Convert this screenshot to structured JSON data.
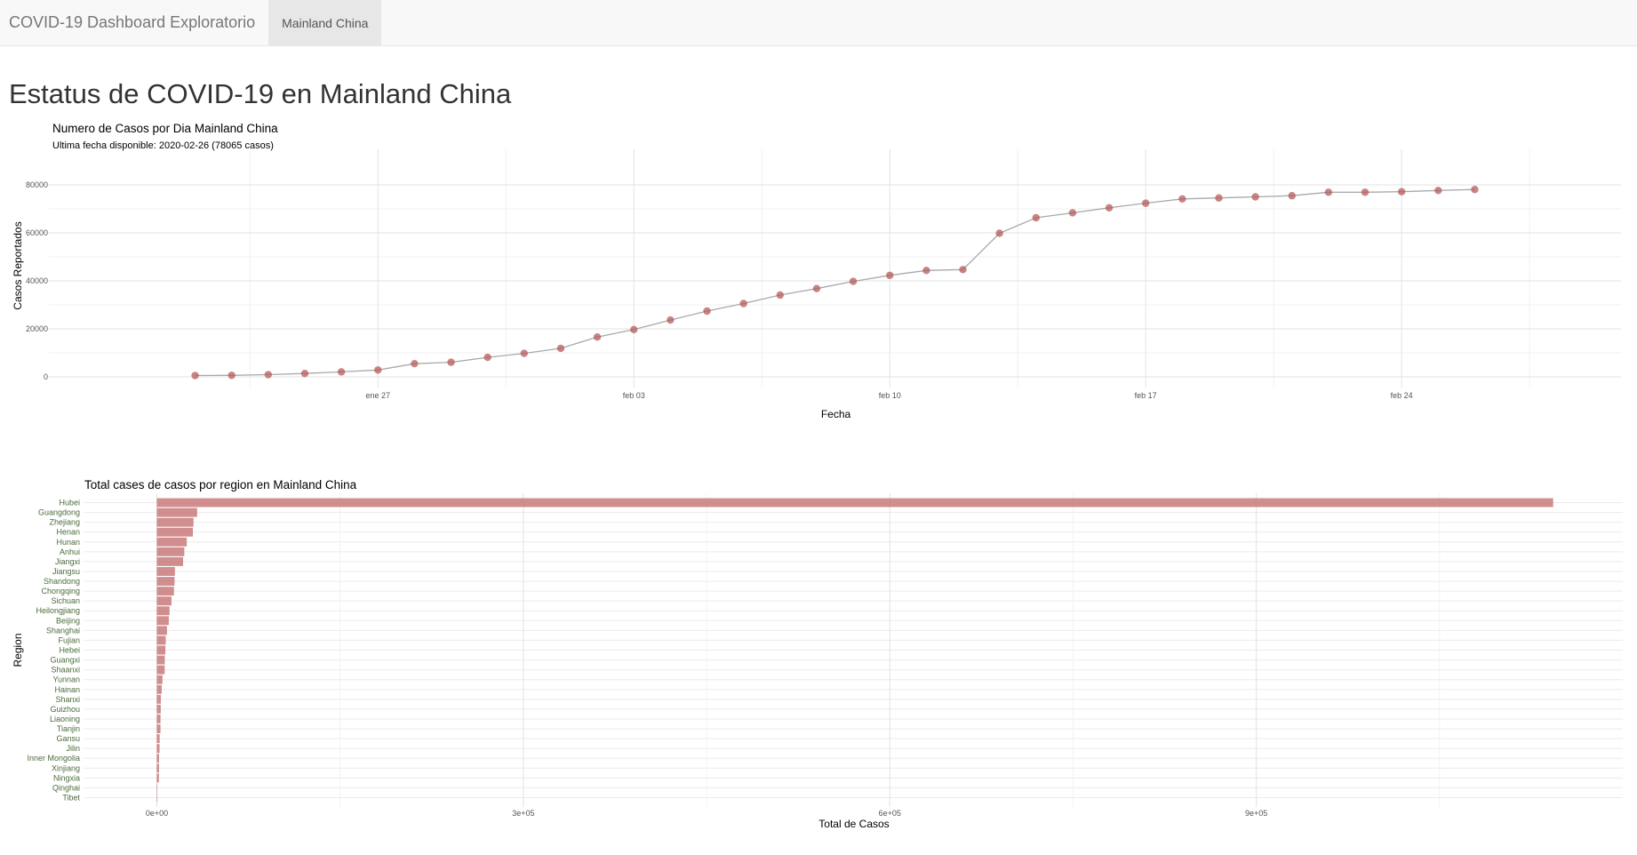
{
  "navbar": {
    "brand": "COVID-19 Dashboard Exploratorio",
    "active_tab": "Mainland China"
  },
  "page_title": "Estatus de COVID-19 en Mainland China",
  "colors": {
    "point": "#b55a5a",
    "line": "#a9a9a9",
    "bar": "#c97a7a",
    "region_label": "#4a6b3a"
  },
  "chart_data": [
    {
      "type": "line",
      "title": "Numero de Casos por Dia Mainland China",
      "subtitle": "Ultima fecha disponible: 2020-02-26 (78065 casos)",
      "xlabel": "Fecha",
      "ylabel": "Casos Reportados",
      "x": [
        "2020-01-22",
        "2020-01-23",
        "2020-01-24",
        "2020-01-25",
        "2020-01-26",
        "2020-01-27",
        "2020-01-28",
        "2020-01-29",
        "2020-01-30",
        "2020-01-31",
        "2020-02-01",
        "2020-02-02",
        "2020-02-03",
        "2020-02-04",
        "2020-02-05",
        "2020-02-06",
        "2020-02-07",
        "2020-02-08",
        "2020-02-09",
        "2020-02-10",
        "2020-02-11",
        "2020-02-12",
        "2020-02-13",
        "2020-02-14",
        "2020-02-15",
        "2020-02-16",
        "2020-02-17",
        "2020-02-18",
        "2020-02-19",
        "2020-02-20",
        "2020-02-21",
        "2020-02-22",
        "2020-02-23",
        "2020-02-24",
        "2020-02-25",
        "2020-02-26"
      ],
      "values": [
        547,
        639,
        916,
        1399,
        2062,
        2863,
        5494,
        6070,
        8124,
        9783,
        11871,
        16607,
        19693,
        23680,
        27409,
        30553,
        34075,
        36778,
        39790,
        42306,
        44327,
        44699,
        59832,
        66292,
        68347,
        70446,
        72364,
        74139,
        74546,
        74999,
        75472,
        76922,
        76938,
        77152,
        77660,
        78065
      ],
      "xticks": [
        {
          "label": "ene 27",
          "date": "2020-01-27"
        },
        {
          "label": "feb 03",
          "date": "2020-02-03"
        },
        {
          "label": "feb 10",
          "date": "2020-02-10"
        },
        {
          "label": "feb 17",
          "date": "2020-02-17"
        },
        {
          "label": "feb 24",
          "date": "2020-02-24"
        }
      ],
      "yticks": [
        0,
        20000,
        40000,
        60000,
        80000
      ],
      "ylim": [
        0,
        80000
      ],
      "grid": true
    },
    {
      "type": "bar",
      "orientation": "horizontal",
      "title": "Total cases de casos por region en Mainland China",
      "xlabel": "Total de Casos",
      "ylabel": "Region",
      "categories": [
        "Hubei",
        "Guangdong",
        "Zhejiang",
        "Henan",
        "Hunan",
        "Anhui",
        "Jiangxi",
        "Jiangsu",
        "Shandong",
        "Chongqing",
        "Sichuan",
        "Heilongjiang",
        "Beijing",
        "Shanghai",
        "Fujian",
        "Hebei",
        "Guangxi",
        "Shaanxi",
        "Yunnan",
        "Hainan",
        "Shanxi",
        "Guizhou",
        "Liaoning",
        "Tianjin",
        "Gansu",
        "Jilin",
        "Inner Mongolia",
        "Xinjiang",
        "Ningxia",
        "Qinghai",
        "Tibet"
      ],
      "values": [
        1143000,
        33000,
        30000,
        29500,
        24500,
        22500,
        21500,
        14800,
        14500,
        14000,
        12000,
        10400,
        9800,
        8300,
        7300,
        7000,
        6500,
        6400,
        4600,
        4000,
        3300,
        3200,
        3000,
        3000,
        2300,
        2200,
        1800,
        1800,
        1700,
        400,
        30
      ],
      "xticks": [
        {
          "label": "0e+00",
          "value": 0
        },
        {
          "label": "3e+05",
          "value": 300000
        },
        {
          "label": "6e+05",
          "value": 600000
        },
        {
          "label": "9e+05",
          "value": 900000
        }
      ],
      "xlim": [
        -60000,
        1200000
      ],
      "grid": true
    }
  ]
}
